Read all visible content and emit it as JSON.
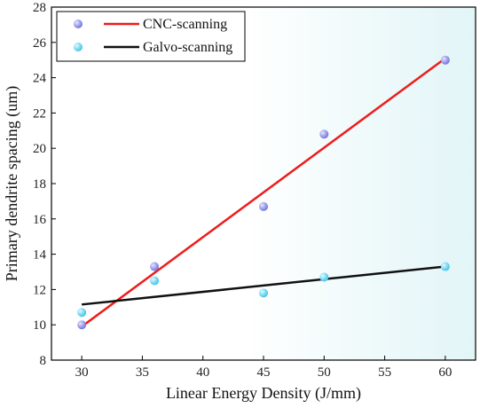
{
  "chart_data": {
    "type": "scatter",
    "xlabel": "Linear Energy Density (J/mm)",
    "ylabel": "Primary dendrite spacing (um)",
    "xlim": [
      27.5,
      62.5
    ],
    "ylim": [
      8,
      28
    ],
    "xticks": [
      30,
      35,
      40,
      45,
      50,
      55,
      60
    ],
    "yticks": [
      8,
      10,
      12,
      14,
      16,
      18,
      20,
      22,
      24,
      26,
      28
    ],
    "legend_position": "top-left",
    "series": [
      {
        "name": "CNC-scanning",
        "marker_color": "#8c8ee6",
        "line_color": "#ee1c1c",
        "x": [
          30,
          36,
          45,
          50,
          60
        ],
        "y": [
          10.0,
          13.3,
          16.7,
          20.8,
          25.0
        ],
        "fit": {
          "x": [
            30,
            60
          ],
          "y": [
            9.9,
            25.1
          ]
        }
      },
      {
        "name": "Galvo-scanning",
        "marker_color": "#6fd3f2",
        "line_color": "#111111",
        "x": [
          30,
          36,
          45,
          50,
          60
        ],
        "y": [
          10.7,
          12.5,
          11.8,
          12.7,
          13.3
        ],
        "fit": {
          "x": [
            30,
            60
          ],
          "y": [
            11.15,
            13.3
          ]
        }
      }
    ]
  }
}
